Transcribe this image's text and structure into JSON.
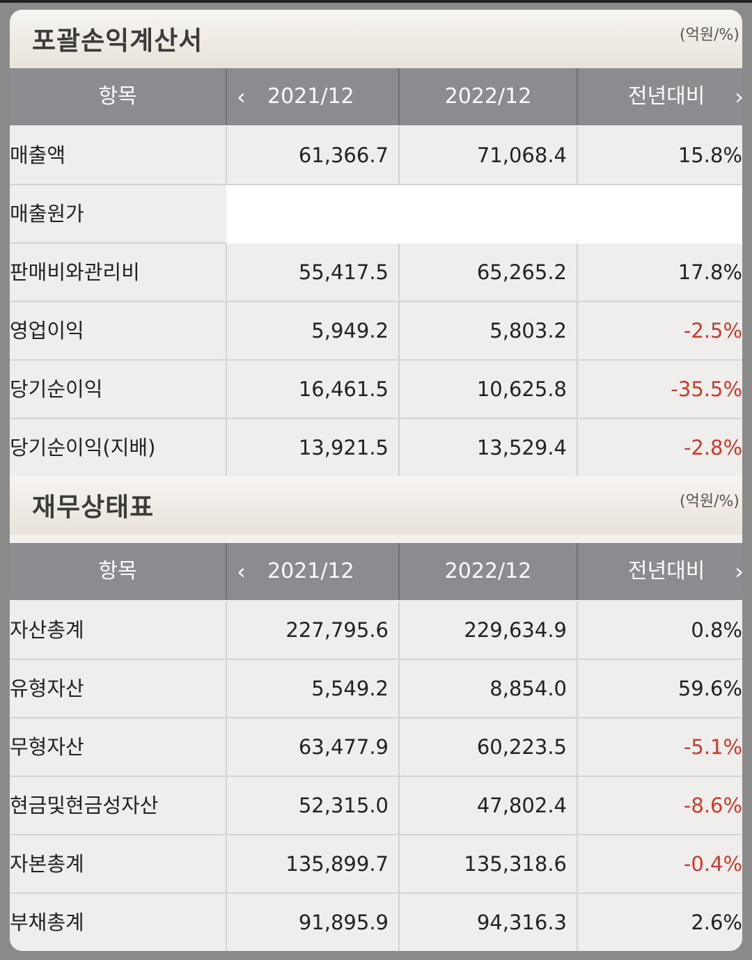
{
  "income_statement": {
    "title": "포괄손익계산서",
    "unit": "(억원/%)",
    "header": {
      "item": "항목",
      "col1": "2021/12",
      "col2": "2022/12",
      "col3": "전년대비",
      "prev_icon": "chevron-left-icon",
      "next_icon": "chevron-right-icon"
    },
    "rows": [
      {
        "label": "매출액",
        "v1": "61,366.7",
        "v2": "71,068.4",
        "chg": "15.8%",
        "neg": false
      },
      {
        "label": "매출원가",
        "v1": "",
        "v2": "",
        "chg": "",
        "neg": false
      },
      {
        "label": "판매비와관리비",
        "v1": "55,417.5",
        "v2": "65,265.2",
        "chg": "17.8%",
        "neg": false
      },
      {
        "label": "영업이익",
        "v1": "5,949.2",
        "v2": "5,803.2",
        "chg": "-2.5%",
        "neg": true
      },
      {
        "label": "당기순이익",
        "v1": "16,461.5",
        "v2": "10,625.8",
        "chg": "-35.5%",
        "neg": true
      },
      {
        "label": "당기순이익(지배)",
        "v1": "13,921.5",
        "v2": "13,529.4",
        "chg": "-2.8%",
        "neg": true
      }
    ]
  },
  "balance_sheet": {
    "title": "재무상태표",
    "unit": "(억원/%)",
    "header": {
      "item": "항목",
      "col1": "2021/12",
      "col2": "2022/12",
      "col3": "전년대비",
      "prev_icon": "chevron-left-icon",
      "next_icon": "chevron-right-icon"
    },
    "rows": [
      {
        "label": "자산총계",
        "v1": "227,795.6",
        "v2": "229,634.9",
        "chg": "0.8%",
        "neg": false
      },
      {
        "label": "유형자산",
        "v1": "5,549.2",
        "v2": "8,854.0",
        "chg": "59.6%",
        "neg": false
      },
      {
        "label": "무형자산",
        "v1": "63,477.9",
        "v2": "60,223.5",
        "chg": "-5.1%",
        "neg": true
      },
      {
        "label": "현금및현금성자산",
        "v1": "52,315.0",
        "v2": "47,802.4",
        "chg": "-8.6%",
        "neg": true
      },
      {
        "label": "자본총계",
        "v1": "135,899.7",
        "v2": "135,318.6",
        "chg": "-0.4%",
        "neg": true
      },
      {
        "label": "부채총계",
        "v1": "91,895.9",
        "v2": "94,316.3",
        "chg": "2.6%",
        "neg": false
      }
    ]
  },
  "colors": {
    "negative": "#d03a2a",
    "header_bg": "#8a8c90"
  }
}
